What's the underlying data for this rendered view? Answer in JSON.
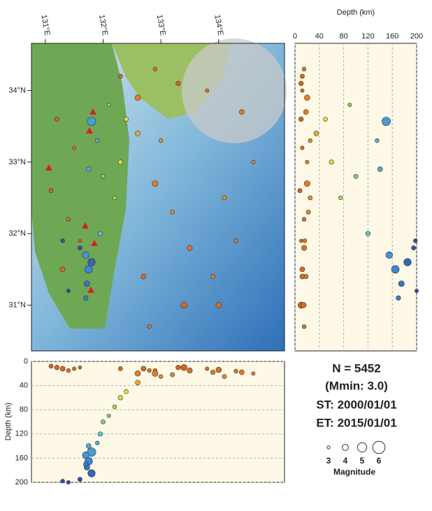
{
  "map": {
    "xlim": [
      130.76,
      135.14
    ],
    "ylim": [
      30.36,
      34.66
    ],
    "xticks": [
      {
        "value": 131,
        "label": "131°E"
      },
      {
        "value": 132,
        "label": "132°E"
      },
      {
        "value": 133,
        "label": "133°E"
      },
      {
        "value": 134,
        "label": "134°E"
      }
    ],
    "yticks": [
      {
        "value": 31,
        "label": "31°N"
      },
      {
        "value": 32,
        "label": "32°N"
      },
      {
        "value": 33,
        "label": "33°N"
      },
      {
        "value": 34,
        "label": "34°N"
      }
    ],
    "events": [
      {
        "lon": 131.2,
        "lat": 33.6,
        "depth": 10,
        "mag": 3.5
      },
      {
        "lon": 131.5,
        "lat": 33.2,
        "depth": 12,
        "mag": 3.2
      },
      {
        "lon": 131.1,
        "lat": 32.6,
        "depth": 8,
        "mag": 3.4
      },
      {
        "lon": 131.4,
        "lat": 32.2,
        "depth": 15,
        "mag": 3.3
      },
      {
        "lon": 131.6,
        "lat": 31.9,
        "depth": 10,
        "mag": 3.1
      },
      {
        "lon": 131.3,
        "lat": 31.5,
        "depth": 12,
        "mag": 3.6
      },
      {
        "lon": 132.3,
        "lat": 34.2,
        "depth": 12,
        "mag": 3.4
      },
      {
        "lon": 132.6,
        "lat": 33.9,
        "depth": 20,
        "mag": 3.8
      },
      {
        "lon": 132.9,
        "lat": 34.3,
        "depth": 15,
        "mag": 3.3
      },
      {
        "lon": 133.3,
        "lat": 34.1,
        "depth": 10,
        "mag": 3.5
      },
      {
        "lon": 133.8,
        "lat": 34.0,
        "depth": 12,
        "mag": 3.2
      },
      {
        "lon": 134.4,
        "lat": 33.7,
        "depth": 18,
        "mag": 3.6
      },
      {
        "lon": 132.9,
        "lat": 32.7,
        "depth": 20,
        "mag": 3.9
      },
      {
        "lon": 133.2,
        "lat": 32.3,
        "depth": 22,
        "mag": 3.4
      },
      {
        "lon": 133.5,
        "lat": 31.8,
        "depth": 15,
        "mag": 3.7
      },
      {
        "lon": 133.9,
        "lat": 31.4,
        "depth": 18,
        "mag": 3.5
      },
      {
        "lon": 133.4,
        "lat": 31.0,
        "depth": 10,
        "mag": 4.0
      },
      {
        "lon": 132.8,
        "lat": 30.7,
        "depth": 15,
        "mag": 3.3
      },
      {
        "lon": 134.1,
        "lat": 32.5,
        "depth": 25,
        "mag": 3.4
      },
      {
        "lon": 134.6,
        "lat": 33.0,
        "depth": 20,
        "mag": 3.2
      },
      {
        "lon": 132.7,
        "lat": 31.4,
        "depth": 12,
        "mag": 3.6
      },
      {
        "lon": 133.0,
        "lat": 33.3,
        "depth": 25,
        "mag": 3.3
      },
      {
        "lon": 134.0,
        "lat": 31.0,
        "depth": 14,
        "mag": 3.8
      },
      {
        "lon": 134.3,
        "lat": 31.9,
        "depth": 16,
        "mag": 3.3
      },
      {
        "lon": 132.6,
        "lat": 33.4,
        "depth": 35,
        "mag": 3.6
      },
      {
        "lon": 132.4,
        "lat": 33.6,
        "depth": 50,
        "mag": 3.4
      },
      {
        "lon": 132.3,
        "lat": 33.0,
        "depth": 60,
        "mag": 3.5
      },
      {
        "lon": 132.2,
        "lat": 32.5,
        "depth": 75,
        "mag": 3.3
      },
      {
        "lon": 132.1,
        "lat": 33.8,
        "depth": 90,
        "mag": 3.2
      },
      {
        "lon": 132.0,
        "lat": 32.8,
        "depth": 100,
        "mag": 3.4
      },
      {
        "lon": 131.95,
        "lat": 32.0,
        "depth": 120,
        "mag": 3.5
      },
      {
        "lon": 131.9,
        "lat": 33.3,
        "depth": 135,
        "mag": 3.3
      },
      {
        "lon": 131.8,
        "lat": 33.57,
        "depth": 150,
        "mag": 4.8
      },
      {
        "lon": 131.75,
        "lat": 32.9,
        "depth": 140,
        "mag": 3.6
      },
      {
        "lon": 131.7,
        "lat": 31.7,
        "depth": 155,
        "mag": 4.2
      },
      {
        "lon": 131.75,
        "lat": 31.5,
        "depth": 165,
        "mag": 4.5
      },
      {
        "lon": 131.72,
        "lat": 31.3,
        "depth": 175,
        "mag": 3.9
      },
      {
        "lon": 131.8,
        "lat": 31.6,
        "depth": 185,
        "mag": 4.4
      },
      {
        "lon": 131.7,
        "lat": 31.1,
        "depth": 170,
        "mag": 3.5
      },
      {
        "lon": 131.6,
        "lat": 31.8,
        "depth": 195,
        "mag": 3.4
      },
      {
        "lon": 131.3,
        "lat": 31.9,
        "depth": 198,
        "mag": 3.3
      },
      {
        "lon": 131.4,
        "lat": 31.2,
        "depth": 200,
        "mag": 3.2
      }
    ]
  },
  "depth_lat": {
    "xlabel": "Depth (km)",
    "xlim": [
      0,
      200
    ],
    "xticks": [
      0,
      40,
      80,
      120,
      160,
      200
    ]
  },
  "depth_lon": {
    "ylabel": "Depth (km)",
    "ylim": [
      0,
      200
    ],
    "yticks": [
      0,
      40,
      80,
      120,
      160,
      200
    ]
  },
  "info": {
    "count": "N = 5452",
    "mmin": "(Mmin: 3.0)",
    "start": "ST: 2000/01/01",
    "end": "ET: 2015/01/01"
  },
  "magnitude_legend": {
    "title": "Magnitude",
    "values": [
      3,
      4,
      5,
      6
    ]
  }
}
